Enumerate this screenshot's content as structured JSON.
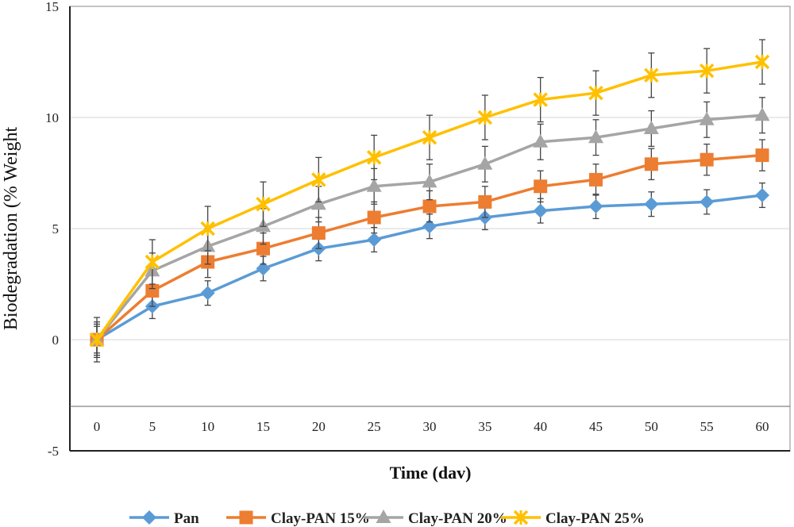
{
  "chart_data": {
    "type": "line",
    "title": "",
    "xlabel": "Time (dav)",
    "ylabel": "Biodegradation (% Weight",
    "x": [
      0,
      5,
      10,
      15,
      20,
      25,
      30,
      35,
      40,
      45,
      50,
      55,
      60
    ],
    "x_tick_labels": [
      "0",
      "5",
      "10",
      "15",
      "20",
      "25",
      "30",
      "35",
      "40",
      "45",
      "50",
      "55",
      "60"
    ],
    "ylim": [
      -5,
      15
    ],
    "y_ticks": [
      -5,
      0,
      5,
      10,
      15
    ],
    "y_tick_labels": [
      "-5",
      "0",
      "5",
      "10",
      "15"
    ],
    "grid": "horizontal",
    "legend_position": "bottom",
    "series": [
      {
        "name": "Pan",
        "color": "#5b9bd5",
        "marker": "diamond",
        "values": [
          0,
          1.5,
          2.1,
          3.2,
          4.1,
          4.5,
          5.1,
          5.5,
          5.8,
          6.0,
          6.1,
          6.2,
          6.5
        ],
        "errors": [
          0.6,
          0.55,
          0.55,
          0.55,
          0.55,
          0.55,
          0.55,
          0.55,
          0.55,
          0.55,
          0.55,
          0.55,
          0.55
        ]
      },
      {
        "name": "Clay-PAN 15%",
        "color": "#ed7d31",
        "marker": "square",
        "values": [
          0,
          2.2,
          3.5,
          4.1,
          4.8,
          5.5,
          6.0,
          6.2,
          6.9,
          7.2,
          7.9,
          8.1,
          8.3
        ],
        "errors": [
          0.7,
          0.7,
          0.7,
          0.7,
          0.7,
          0.7,
          0.7,
          0.7,
          0.7,
          0.7,
          0.7,
          0.7,
          0.7
        ]
      },
      {
        "name": "Clay-PAN 20%",
        "color": "#a5a5a5",
        "marker": "triangle",
        "values": [
          0,
          3.1,
          4.2,
          5.1,
          6.1,
          6.9,
          7.1,
          7.9,
          8.9,
          9.1,
          9.5,
          9.9,
          10.1
        ],
        "errors": [
          0.8,
          0.8,
          0.8,
          0.8,
          0.8,
          0.8,
          0.8,
          0.8,
          0.8,
          0.8,
          0.8,
          0.8,
          0.8
        ]
      },
      {
        "name": "Clay-PAN 25%",
        "color": "#ffc000",
        "marker": "star",
        "values": [
          0,
          3.5,
          5.0,
          6.1,
          7.2,
          8.2,
          9.1,
          10.0,
          10.8,
          11.1,
          11.9,
          12.1,
          12.5
        ],
        "errors": [
          1.0,
          1.0,
          1.0,
          1.0,
          1.0,
          1.0,
          1.0,
          1.0,
          1.0,
          1.0,
          1.0,
          1.0,
          1.0
        ]
      }
    ]
  }
}
